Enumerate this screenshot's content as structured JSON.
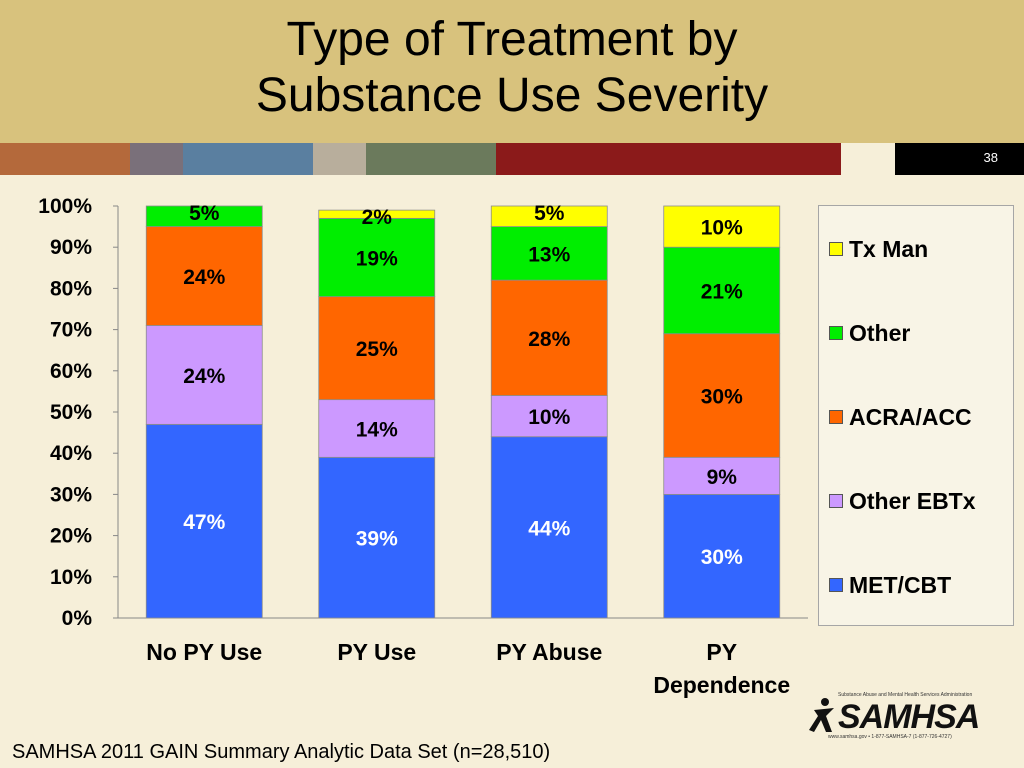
{
  "slide": {
    "title_line1": "Type of Treatment by",
    "title_line2": "Substance Use Severity",
    "number": "38",
    "source": "SAMHSA 2011 GAIN Summary Analytic Data Set (n=28,510)",
    "logo_text": "SAMHSA",
    "logo_subtitle": "Substance Abuse and Mental Health Services Administration",
    "logo_footer": "www.samhsa.gov • 1-877-SAMHSA-7 (1-877-726-4727)"
  },
  "stripe_colors": [
    "#b4693b",
    "#7a707a",
    "#5a7fa0",
    "#b8ae9c",
    "#6b7a5c",
    "#8b1a1a"
  ],
  "chart_data": {
    "type": "bar",
    "stacked": true,
    "categories": [
      [
        "No PY Use"
      ],
      [
        "PY Use"
      ],
      [
        "PY Abuse"
      ],
      [
        "PY",
        "Dependence"
      ]
    ],
    "series": [
      {
        "name": "MET/CBT",
        "color": "#3366ff",
        "values": [
          47,
          39,
          44,
          30
        ]
      },
      {
        "name": "Other EBTx",
        "color": "#cc99ff",
        "values": [
          24,
          14,
          10,
          9
        ]
      },
      {
        "name": "ACRA/ACC",
        "color": "#ff6600",
        "values": [
          24,
          25,
          28,
          30
        ]
      },
      {
        "name": "Other",
        "color": "#00ee00",
        "values": [
          5,
          19,
          13,
          21
        ]
      },
      {
        "name": "Tx Man",
        "color": "#ffff00",
        "values": [
          0,
          2,
          5,
          10
        ]
      }
    ],
    "data_labels": [
      [
        "47%",
        "24%",
        "24%",
        "5%",
        ""
      ],
      [
        "39%",
        "14%",
        "25%",
        "19%",
        "2%"
      ],
      [
        "44%",
        "10%",
        "28%",
        "13%",
        "5%"
      ],
      [
        "30%",
        "9%",
        "30%",
        "21%",
        "10%"
      ]
    ],
    "label_colors": [
      "#ffffff",
      "#000000",
      "#000000",
      "#000000",
      "#000000"
    ],
    "y_ticks": [
      "0%",
      "10%",
      "20%",
      "30%",
      "40%",
      "50%",
      "60%",
      "70%",
      "80%",
      "90%",
      "100%"
    ],
    "ylim": [
      0,
      100
    ],
    "legend_position": "right",
    "legend_order": [
      "Tx Man",
      "Other",
      "ACRA/ACC",
      "Other EBTx",
      "MET/CBT"
    ]
  }
}
